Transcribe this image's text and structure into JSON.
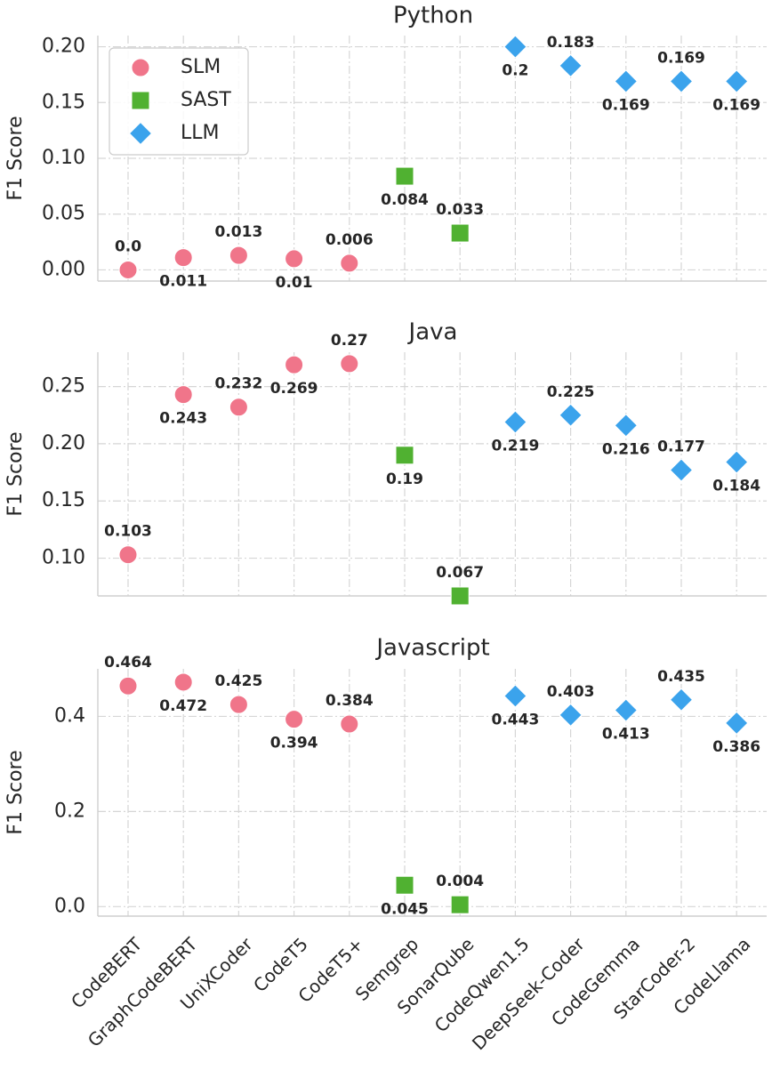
{
  "chart_data": {
    "type": "scatter",
    "ylabel": "F1 Score",
    "categories": [
      "CodeBERT",
      "GraphCodeBERT",
      "UniXCoder",
      "CodeT5",
      "CodeT5+",
      "Semgrep",
      "SonarQube",
      "CodeQwen1.5",
      "DeepSeek-Coder",
      "CodeGemma",
      "StarCoder-2",
      "CodeLlama"
    ],
    "legend": {
      "position": "upper-left of first panel",
      "entries": [
        {
          "name": "SLM",
          "marker": "circle",
          "color": "#f0758a"
        },
        {
          "name": "SAST",
          "marker": "square",
          "color": "#50b131"
        },
        {
          "name": "LLM",
          "marker": "diamond",
          "color": "#3ba3ec"
        }
      ]
    },
    "groups": [
      "SLM",
      "SLM",
      "SLM",
      "SLM",
      "SLM",
      "SAST",
      "SAST",
      "LLM",
      "LLM",
      "LLM",
      "LLM",
      "LLM"
    ],
    "panels": [
      {
        "title": "Python",
        "ylim": [
          -0.01,
          0.21
        ],
        "yticks": [
          "0.00",
          "0.05",
          "0.10",
          "0.15",
          "0.20"
        ],
        "values": [
          0.0,
          0.011,
          0.013,
          0.01,
          0.006,
          0.084,
          0.033,
          0.2,
          0.183,
          0.169,
          0.169,
          0.169
        ],
        "labels": [
          "0.0",
          "0.011",
          "0.013",
          "0.01",
          "0.006",
          "0.084",
          "0.033",
          "0.2",
          "0.183",
          "0.169",
          "0.169",
          "0.169"
        ],
        "label_pos": [
          "above",
          "below",
          "above",
          "below",
          "above",
          "below",
          "above",
          "below",
          "above",
          "below",
          "above",
          "below"
        ]
      },
      {
        "title": "Java",
        "ylim": [
          0.067,
          0.28
        ],
        "yticks": [
          "0.10",
          "0.15",
          "0.20",
          "0.25"
        ],
        "values": [
          0.103,
          0.243,
          0.232,
          0.269,
          0.27,
          0.19,
          0.067,
          0.219,
          0.225,
          0.216,
          0.177,
          0.184
        ],
        "labels": [
          "0.103",
          "0.243",
          "0.232",
          "0.269",
          "0.27",
          "0.19",
          "0.067",
          "0.219",
          "0.225",
          "0.216",
          "0.177",
          "0.184"
        ],
        "label_pos": [
          "above",
          "below",
          "above",
          "below",
          "above",
          "below",
          "above",
          "below",
          "above",
          "below",
          "above",
          "below"
        ]
      },
      {
        "title": "Javascript",
        "ylim": [
          -0.02,
          0.5
        ],
        "yticks": [
          "0.0",
          "0.2",
          "0.4"
        ],
        "values": [
          0.464,
          0.472,
          0.425,
          0.394,
          0.384,
          0.045,
          0.004,
          0.443,
          0.403,
          0.413,
          0.435,
          0.386
        ],
        "labels": [
          "0.464",
          "0.472",
          "0.425",
          "0.394",
          "0.384",
          "0.045",
          "0.004",
          "0.443",
          "0.403",
          "0.413",
          "0.435",
          "0.386"
        ],
        "label_pos": [
          "above",
          "below",
          "above",
          "below",
          "above",
          "below",
          "above",
          "below",
          "above",
          "below",
          "above",
          "below"
        ]
      }
    ]
  }
}
